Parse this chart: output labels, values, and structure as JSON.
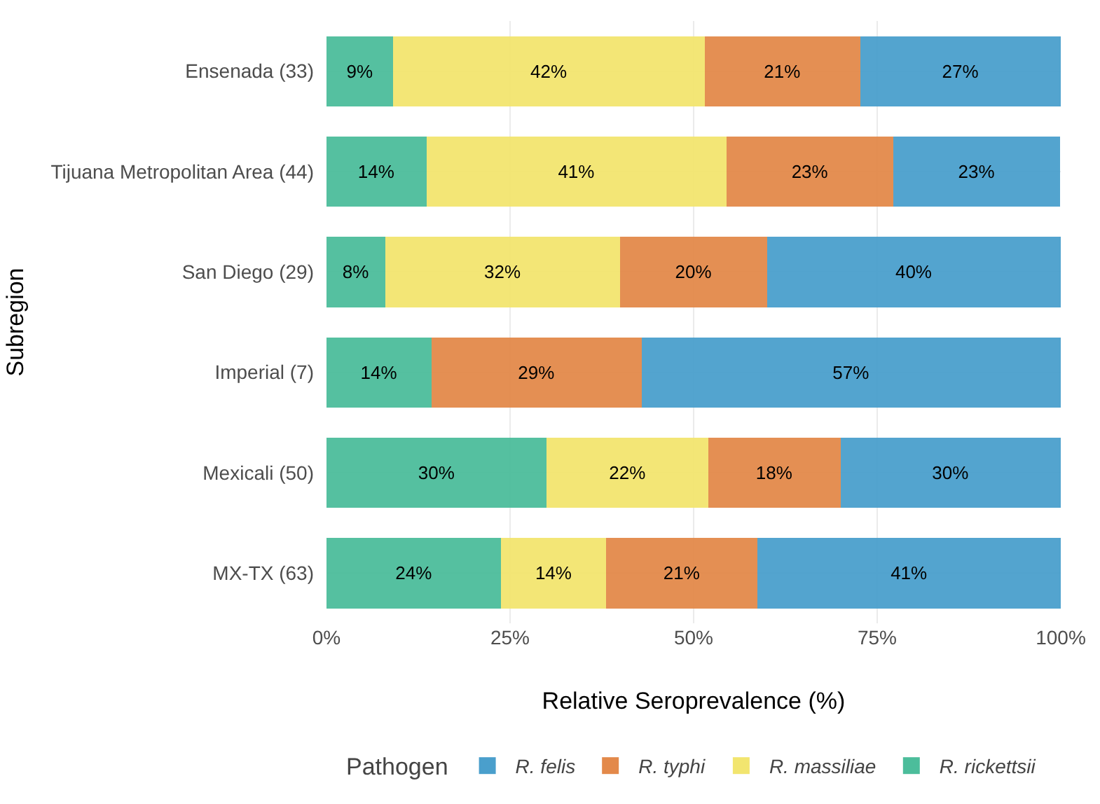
{
  "chart_data": {
    "type": "bar",
    "orientation": "horizontal",
    "stacked": true,
    "xlabel": "Relative Seroprevalence (%)",
    "ylabel": "Subregion",
    "legend_title": "Pathogen",
    "legend": "bottom",
    "grid": true,
    "categories": [
      "Ensenada (33)",
      "Tijuana Metropolitan Area (44)",
      "San Diego (29)",
      "Imperial (7)",
      "Mexicali (50)",
      "MX-TX (63)"
    ],
    "xlim": [
      0,
      100
    ],
    "xticks": [
      {
        "value": 0,
        "label": "0%"
      },
      {
        "value": 25,
        "label": "25%"
      },
      {
        "value": 50,
        "label": "50%"
      },
      {
        "value": 75,
        "label": "75%"
      },
      {
        "value": 100,
        "label": "100%"
      }
    ],
    "series": [
      {
        "name": "R. rickettsii",
        "color": "#4cbd9b",
        "values": [
          9.1,
          13.6,
          8,
          14.3,
          30,
          23.8
        ],
        "value_labels": [
          "9%",
          "14%",
          "8%",
          "14%",
          "30%",
          "24%"
        ]
      },
      {
        "name": "R. massiliae",
        "color": "#f2e56f",
        "values": [
          42.4,
          40.9,
          32,
          null,
          22,
          14.3
        ],
        "value_labels": [
          "42%",
          "41%",
          "32%",
          null,
          "22%",
          "14%"
        ]
      },
      {
        "name": "R. typhi",
        "color": "#e3894a",
        "values": [
          21.2,
          22.7,
          20,
          28.6,
          18,
          20.6
        ],
        "value_labels": [
          "21%",
          "23%",
          "20%",
          "29%",
          "18%",
          "21%"
        ]
      },
      {
        "name": "R. felis",
        "color": "#4a9fcc",
        "values": [
          27.3,
          22.7,
          40,
          57.1,
          30,
          41.3
        ],
        "value_labels": [
          "27%",
          "23%",
          "40%",
          "57%",
          "30%",
          "41%"
        ]
      }
    ]
  }
}
